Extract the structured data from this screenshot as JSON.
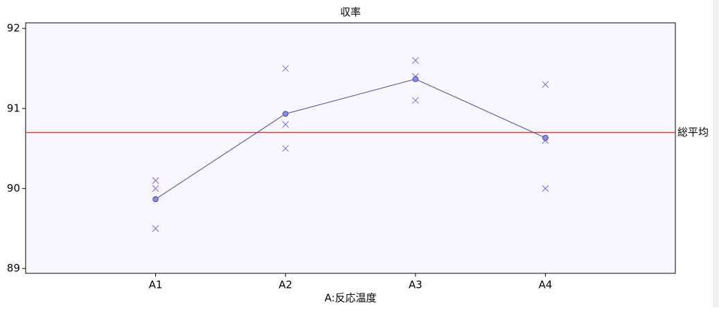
{
  "chart_data": {
    "type": "line",
    "title": "収率",
    "x_label": "A:反応温度",
    "categories": [
      "A1",
      "A2",
      "A3",
      "A4"
    ],
    "observations": [
      [
        90.1,
        90.0,
        89.5
      ],
      [
        91.5,
        90.8,
        90.5
      ],
      [
        91.6,
        91.4,
        91.1
      ],
      [
        91.3,
        90.6,
        90.0
      ]
    ],
    "observation_color": "#7070e8",
    "means": [
      89.867,
      90.933,
      91.367,
      90.633
    ],
    "mean_color": "#4848a8",
    "mean_fill": "#8c8ce8",
    "reference_line": {
      "value": 90.7,
      "label": "総平均",
      "color": "#ff3030"
    },
    "ylim": [
      88.94,
      92.07
    ],
    "yticks": [
      89,
      90,
      91,
      92
    ],
    "background": "#f8f6fe"
  }
}
